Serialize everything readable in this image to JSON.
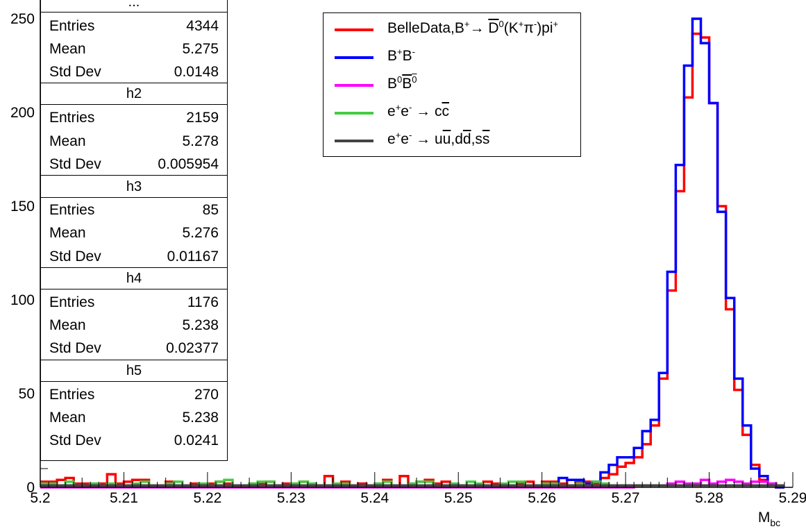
{
  "chart_data": {
    "type": "histogram",
    "xlabel": "M",
    "xlabel_sub": "bc",
    "xlim": [
      5.2,
      5.29
    ],
    "ylim": [
      0,
      260
    ],
    "xticks": [
      "5.2",
      "5.21",
      "5.22",
      "5.23",
      "5.24",
      "5.25",
      "5.26",
      "5.27",
      "5.28",
      "5.29"
    ],
    "yticks": [
      "0",
      "50",
      "100",
      "150",
      "200",
      "250"
    ],
    "bin_width": 0.001,
    "series": [
      {
        "name": "BelleData,B+→D0(K+π-)pi+",
        "color": "#ff0000",
        "x_start": 5.2,
        "values": [
          3,
          3,
          4,
          5,
          2,
          2,
          2,
          2,
          7,
          2,
          3,
          4,
          4,
          1,
          1,
          3,
          1,
          1,
          2,
          1,
          2,
          3,
          2,
          1,
          1,
          2,
          2,
          3,
          1,
          2,
          2,
          3,
          1,
          1,
          6,
          1,
          3,
          1,
          2,
          1,
          2,
          4,
          1,
          6,
          2,
          3,
          4,
          2,
          3,
          1,
          1,
          1,
          1,
          3,
          2,
          1,
          1,
          2,
          3,
          1,
          3,
          3,
          2,
          4,
          3,
          3,
          2,
          5,
          7,
          11,
          13,
          16,
          23,
          33,
          58,
          105,
          158,
          208,
          242,
          240,
          205,
          150,
          95,
          52,
          28,
          12,
          4,
          1,
          0
        ]
      },
      {
        "name": "B+B-",
        "color": "#0000ff",
        "x_start": 5.2,
        "values": [
          1,
          1,
          1,
          1,
          1,
          1,
          1,
          1,
          1,
          1,
          1,
          1,
          1,
          1,
          1,
          1,
          1,
          1,
          1,
          1,
          1,
          1,
          1,
          1,
          1,
          1,
          1,
          1,
          1,
          1,
          1,
          1,
          1,
          1,
          1,
          1,
          1,
          1,
          1,
          1,
          1,
          1,
          1,
          1,
          1,
          1,
          1,
          1,
          1,
          1,
          1,
          1,
          1,
          1,
          1,
          1,
          1,
          1,
          1,
          1,
          1,
          1,
          5,
          4,
          4,
          2,
          3,
          8,
          12,
          16,
          16,
          21,
          30,
          36,
          61,
          115,
          172,
          225,
          250,
          237,
          205,
          147,
          101,
          58,
          33,
          10,
          6,
          2,
          0
        ]
      },
      {
        "name": "B0B0",
        "color": "#ff00ff",
        "x_start": 5.2,
        "values": [
          0,
          0,
          0,
          0,
          0,
          0,
          0,
          0,
          0,
          0,
          0,
          0,
          0,
          0,
          0,
          0,
          0,
          0,
          0,
          0,
          0,
          0,
          0,
          0,
          0,
          0,
          0,
          0,
          0,
          0,
          0,
          0,
          0,
          0,
          0,
          0,
          0,
          0,
          0,
          0,
          0,
          0,
          0,
          0,
          0,
          0,
          0,
          0,
          0,
          0,
          0,
          0,
          0,
          0,
          0,
          0,
          0,
          0,
          0,
          0,
          0,
          0,
          0,
          0,
          0,
          0,
          0,
          0,
          0,
          0,
          0,
          1,
          1,
          1,
          1,
          2,
          3,
          2,
          2,
          4,
          2,
          3,
          4,
          3,
          2,
          3,
          3,
          2,
          1
        ]
      },
      {
        "name": "e+e- → cc",
        "color": "#44cc44",
        "x_start": 5.2,
        "values": [
          2,
          2,
          1,
          3,
          1,
          1,
          2,
          1,
          2,
          1,
          1,
          2,
          3,
          1,
          1,
          2,
          3,
          1,
          1,
          2,
          1,
          3,
          4,
          1,
          1,
          2,
          3,
          3,
          1,
          1,
          2,
          3,
          2,
          1,
          1,
          2,
          2,
          1,
          1,
          1,
          2,
          3,
          1,
          1,
          2,
          3,
          3,
          1,
          1,
          2,
          1,
          3,
          2,
          1,
          1,
          2,
          3,
          3,
          1,
          1,
          2,
          2,
          1,
          1,
          2,
          1,
          3,
          2,
          1,
          1,
          1,
          1,
          1,
          1,
          1,
          1,
          1,
          1,
          1,
          1,
          1,
          1,
          1,
          1,
          1,
          1,
          1,
          1,
          1
        ]
      },
      {
        "name": "e+e- → uu,dd,ss",
        "color": "#444444",
        "x_start": 5.2,
        "values": [
          1,
          1,
          1,
          1,
          1,
          1,
          1,
          1,
          1,
          1,
          1,
          1,
          1,
          1,
          1,
          1,
          1,
          1,
          1,
          1,
          1,
          1,
          1,
          1,
          1,
          1,
          1,
          1,
          1,
          1,
          1,
          1,
          1,
          1,
          1,
          1,
          1,
          1,
          1,
          1,
          1,
          1,
          1,
          1,
          1,
          1,
          1,
          1,
          1,
          1,
          1,
          1,
          1,
          1,
          1,
          1,
          1,
          1,
          1,
          1,
          1,
          1,
          1,
          1,
          1,
          1,
          1,
          1,
          1,
          1,
          1,
          1,
          1,
          1,
          1,
          1,
          1,
          1,
          1,
          1,
          1,
          1,
          1,
          1,
          1,
          1,
          1,
          1,
          1
        ]
      }
    ]
  },
  "stats": [
    {
      "title": "",
      "entries": "4344",
      "mean": "5.275",
      "std": "0.0148"
    },
    {
      "title": "h2",
      "entries": "2159",
      "mean": "5.278",
      "std": "0.005954"
    },
    {
      "title": "h3",
      "entries": "85",
      "mean": "5.276",
      "std": "0.01167"
    },
    {
      "title": "h4",
      "entries": "1176",
      "mean": "5.238",
      "std": "0.02377"
    },
    {
      "title": "h5",
      "entries": "270",
      "mean": "5.238",
      "std": "0.0241"
    }
  ],
  "stat_labels": {
    "entries": "Entries",
    "mean": "Mean",
    "std": "Std Dev"
  },
  "legend_text": {
    "l1a": "BelleData,B",
    "l1b": "+",
    "l1c": "→ ",
    "l1d": "D",
    "l1e": "0",
    "l1f": "(K",
    "l1g": "+",
    "l1h": "π",
    "l1i": "-",
    "l1j": ")pi",
    "l1k": "+",
    "l2a": "B",
    "l2b": "+",
    "l2c": "B",
    "l2d": "-",
    "l3a": "B",
    "l3b": "0",
    "l3c": "B",
    "l3d": "0",
    "l4a": "e",
    "l4b": "+",
    "l4c": "e",
    "l4d": "-",
    "l4e": " → c",
    "l4f": "c",
    "l5a": "e",
    "l5b": "+",
    "l5c": "e",
    "l5d": "-",
    "l5e": " → u",
    "l5f": "u",
    "l5g": ",d",
    "l5h": "d",
    "l5i": ",s",
    "l5j": "s"
  }
}
